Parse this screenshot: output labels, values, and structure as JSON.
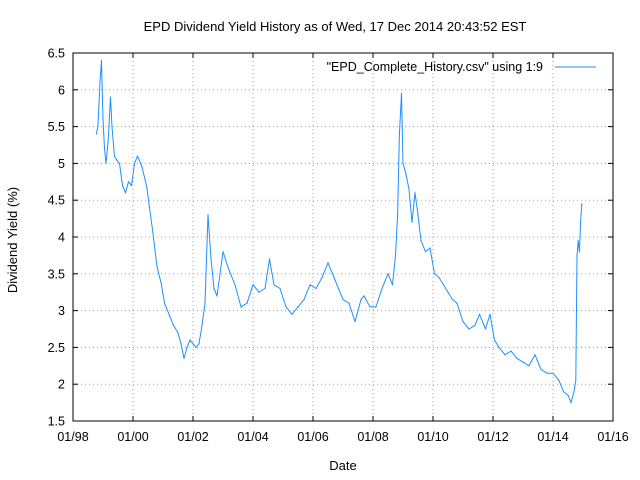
{
  "chart_data": {
    "type": "line",
    "title": "EPD Dividend Yield History as of Wed, 17 Dec 2014 20:43:52 EST",
    "xlabel": "Date",
    "ylabel": "Dividend Yield (%)",
    "xlim": [
      1998.0,
      2016.0
    ],
    "ylim": [
      1.5,
      6.5
    ],
    "x_ticks": [
      {
        "value": 1998,
        "label": "01/98"
      },
      {
        "value": 2000,
        "label": "01/00"
      },
      {
        "value": 2002,
        "label": "01/02"
      },
      {
        "value": 2004,
        "label": "01/04"
      },
      {
        "value": 2006,
        "label": "01/06"
      },
      {
        "value": 2008,
        "label": "01/08"
      },
      {
        "value": 2010,
        "label": "01/10"
      },
      {
        "value": 2012,
        "label": "01/12"
      },
      {
        "value": 2014,
        "label": "01/14"
      },
      {
        "value": 2016,
        "label": "01/16"
      }
    ],
    "y_ticks": [
      {
        "value": 1.5,
        "label": "1.5"
      },
      {
        "value": 2.0,
        "label": "2"
      },
      {
        "value": 2.5,
        "label": "2.5"
      },
      {
        "value": 3.0,
        "label": "3"
      },
      {
        "value": 3.5,
        "label": "3.5"
      },
      {
        "value": 4.0,
        "label": "4"
      },
      {
        "value": 4.5,
        "label": "4.5"
      },
      {
        "value": 5.0,
        "label": "5"
      },
      {
        "value": 5.5,
        "label": "5.5"
      },
      {
        "value": 6.0,
        "label": "6"
      },
      {
        "value": 6.5,
        "label": "6.5"
      }
    ],
    "grid": true,
    "legend_position": "top-right",
    "series": [
      {
        "name": "\"EPD_Complete_History.csv\" using 1:9",
        "color": "#1e90ff",
        "x": [
          1998.78,
          1998.83,
          1998.9,
          1998.95,
          1999.0,
          1999.05,
          1999.1,
          1999.17,
          1999.25,
          1999.3,
          1999.38,
          1999.45,
          1999.55,
          1999.65,
          1999.75,
          1999.85,
          1999.95,
          2000.05,
          2000.15,
          2000.3,
          2000.45,
          2000.55,
          2000.65,
          2000.8,
          2000.95,
          2001.05,
          2001.2,
          2001.35,
          2001.5,
          2001.6,
          2001.7,
          2001.8,
          2001.9,
          2002.0,
          2002.1,
          2002.2,
          2002.3,
          2002.4,
          2002.5,
          2002.6,
          2002.7,
          2002.8,
          2003.0,
          2003.2,
          2003.4,
          2003.6,
          2003.8,
          2004.0,
          2004.2,
          2004.4,
          2004.55,
          2004.7,
          2004.9,
          2005.1,
          2005.3,
          2005.5,
          2005.7,
          2005.9,
          2006.1,
          2006.3,
          2006.5,
          2006.7,
          2006.85,
          2007.0,
          2007.2,
          2007.4,
          2007.6,
          2007.7,
          2007.9,
          2008.1,
          2008.3,
          2008.5,
          2008.65,
          2008.75,
          2008.82,
          2008.88,
          2008.95,
          2009.0,
          2009.1,
          2009.2,
          2009.3,
          2009.4,
          2009.5,
          2009.6,
          2009.75,
          2009.9,
          2010.05,
          2010.2,
          2010.35,
          2010.5,
          2010.65,
          2010.8,
          2011.0,
          2011.2,
          2011.4,
          2011.55,
          2011.75,
          2011.9,
          2012.05,
          2012.2,
          2012.4,
          2012.6,
          2012.8,
          2013.0,
          2013.2,
          2013.4,
          2013.6,
          2013.8,
          2014.0,
          2014.2,
          2014.35,
          2014.5,
          2014.6,
          2014.7,
          2014.76,
          2014.8,
          2014.84,
          2014.88,
          2014.92,
          2014.96
        ],
        "y": [
          5.4,
          5.5,
          6.1,
          6.4,
          5.6,
          5.2,
          5.0,
          5.3,
          5.9,
          5.5,
          5.1,
          5.05,
          5.0,
          4.7,
          4.6,
          4.75,
          4.7,
          5.0,
          5.1,
          4.95,
          4.7,
          4.4,
          4.1,
          3.6,
          3.35,
          3.1,
          2.95,
          2.8,
          2.7,
          2.55,
          2.35,
          2.5,
          2.6,
          2.55,
          2.5,
          2.55,
          2.8,
          3.1,
          4.3,
          3.7,
          3.3,
          3.2,
          3.8,
          3.55,
          3.35,
          3.05,
          3.1,
          3.35,
          3.25,
          3.3,
          3.7,
          3.35,
          3.3,
          3.05,
          2.95,
          3.05,
          3.15,
          3.35,
          3.3,
          3.45,
          3.65,
          3.45,
          3.3,
          3.15,
          3.1,
          2.85,
          3.15,
          3.2,
          3.05,
          3.05,
          3.3,
          3.5,
          3.35,
          3.75,
          4.3,
          5.4,
          5.95,
          5.0,
          4.85,
          4.65,
          4.2,
          4.6,
          4.3,
          3.95,
          3.8,
          3.85,
          3.5,
          3.45,
          3.35,
          3.25,
          3.15,
          3.1,
          2.85,
          2.75,
          2.8,
          2.95,
          2.75,
          2.95,
          2.6,
          2.5,
          2.4,
          2.45,
          2.35,
          2.3,
          2.25,
          2.4,
          2.2,
          2.15,
          2.15,
          2.05,
          1.9,
          1.85,
          1.75,
          1.9,
          2.05,
          3.75,
          3.95,
          3.8,
          4.2,
          4.45
        ]
      }
    ]
  }
}
